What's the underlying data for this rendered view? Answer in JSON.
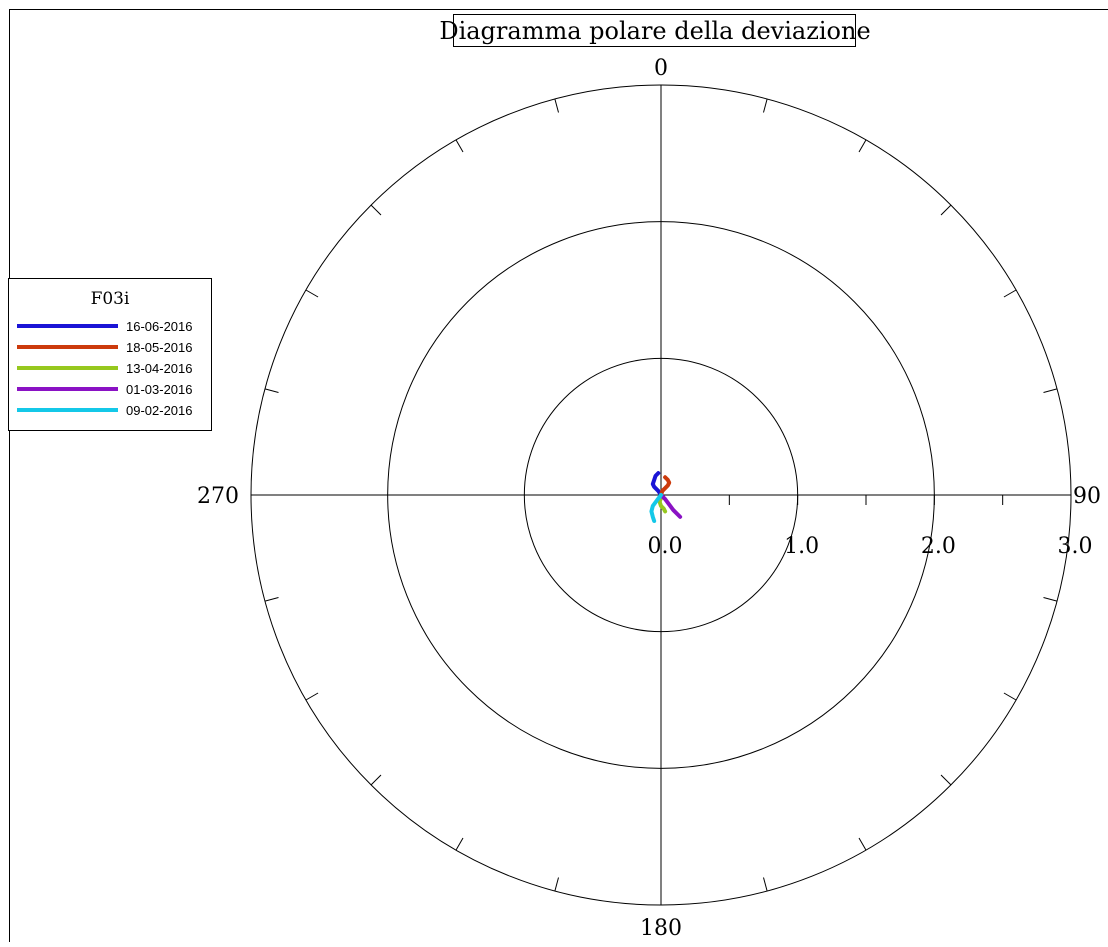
{
  "chart_data": {
    "type": "polar",
    "title": "Diagramma polare della deviazione",
    "angle_labels": [
      {
        "deg": 0,
        "text": "0"
      },
      {
        "deg": 90,
        "text": "90"
      },
      {
        "deg": 180,
        "text": "180"
      },
      {
        "deg": 270,
        "text": "270"
      }
    ],
    "radial_ticks": [
      {
        "value": 0.0,
        "text": "0.0"
      },
      {
        "value": 1.0,
        "text": "1.0"
      },
      {
        "value": 2.0,
        "text": "2.0"
      },
      {
        "value": 3.0,
        "text": "3.0"
      }
    ],
    "rmax": 3.0,
    "rings": [
      1.0,
      2.0,
      3.0
    ],
    "legend": {
      "title": "F03i",
      "placement": "left"
    },
    "series": [
      {
        "name": "16-06-2016",
        "color": "#1a14d6",
        "points": [
          [
            0.0,
            0.0
          ],
          [
            -0.02,
            0.03
          ],
          [
            -0.05,
            0.06
          ],
          [
            -0.06,
            0.08
          ],
          [
            -0.05,
            0.11
          ],
          [
            -0.04,
            0.14
          ],
          [
            -0.02,
            0.16
          ]
        ]
      },
      {
        "name": "18-05-2016",
        "color": "#cc3a0c",
        "points": [
          [
            0.0,
            0.0
          ],
          [
            0.01,
            0.03
          ],
          [
            0.03,
            0.05
          ],
          [
            0.05,
            0.07
          ],
          [
            0.06,
            0.09
          ],
          [
            0.05,
            0.11
          ],
          [
            0.03,
            0.13
          ]
        ]
      },
      {
        "name": "13-04-2016",
        "color": "#96c81e",
        "points": [
          [
            0.0,
            0.0
          ],
          [
            0.0,
            -0.02
          ],
          [
            -0.01,
            -0.05
          ],
          [
            0.0,
            -0.08
          ],
          [
            0.02,
            -0.1
          ],
          [
            0.03,
            -0.12
          ]
        ]
      },
      {
        "name": "01-03-2016",
        "color": "#8a12c4",
        "points": [
          [
            0.0,
            0.0
          ],
          [
            0.03,
            -0.03
          ],
          [
            0.06,
            -0.07
          ],
          [
            0.09,
            -0.11
          ],
          [
            0.12,
            -0.14
          ],
          [
            0.14,
            -0.16
          ]
        ]
      },
      {
        "name": "09-02-2016",
        "color": "#14c8e8",
        "points": [
          [
            0.0,
            0.0
          ],
          [
            -0.03,
            -0.04
          ],
          [
            -0.06,
            -0.08
          ],
          [
            -0.07,
            -0.12
          ],
          [
            -0.06,
            -0.16
          ],
          [
            -0.05,
            -0.19
          ]
        ]
      }
    ]
  }
}
